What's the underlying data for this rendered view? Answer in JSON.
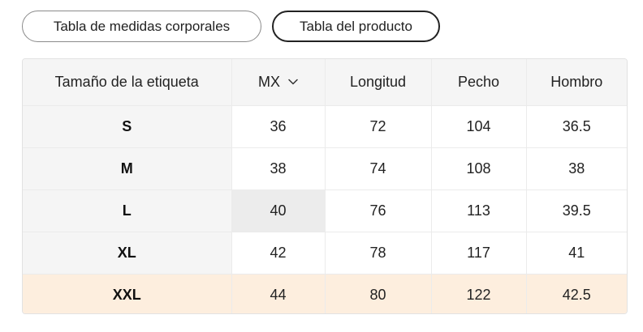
{
  "tabs": [
    {
      "label": "Tabla de medidas corporales",
      "active": false
    },
    {
      "label": "Tabla del producto",
      "active": true
    }
  ],
  "table": {
    "headers": [
      "Tamaño de la etiqueta",
      "MX",
      "Longitud",
      "Pecho",
      "Hombro"
    ],
    "unit_selector_icon": "chevron-down-icon",
    "rows": [
      [
        "S",
        "36",
        "72",
        "104",
        "36.5"
      ],
      [
        "M",
        "38",
        "74",
        "108",
        "38"
      ],
      [
        "L",
        "40",
        "76",
        "113",
        "39.5"
      ],
      [
        "XL",
        "42",
        "78",
        "117",
        "41"
      ],
      [
        "XXL",
        "44",
        "80",
        "122",
        "42.5"
      ]
    ],
    "highlight_row": "XXL",
    "highlight_row_color": "#fdeede",
    "highlight_cell_color": "#ececec"
  }
}
